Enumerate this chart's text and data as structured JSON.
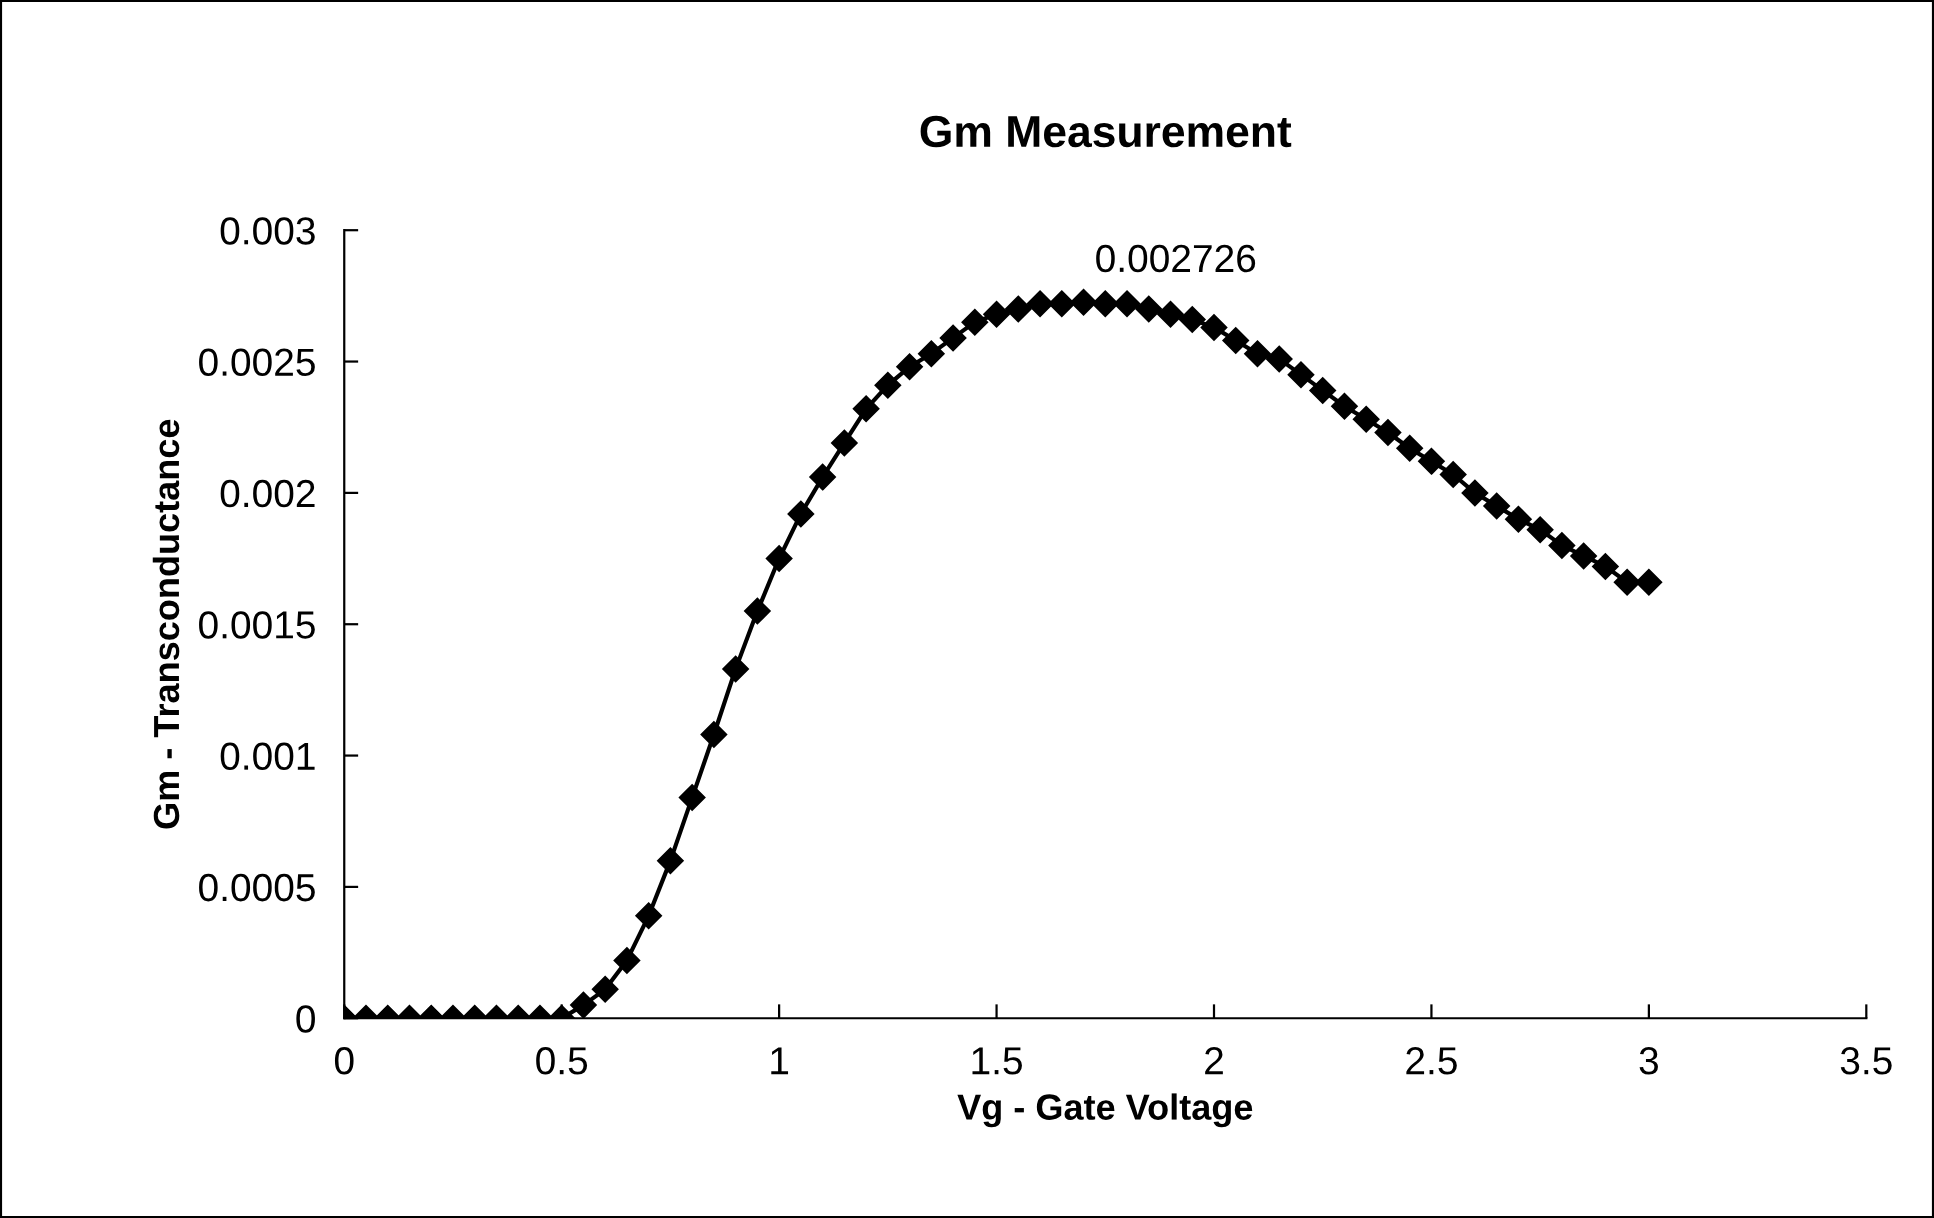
{
  "chart_data": {
    "type": "line",
    "title": "Gm Measurement",
    "xlabel": "Vg - Gate Voltage",
    "ylabel": "Gm - Transconductance",
    "x": [
      0,
      0.05,
      0.1,
      0.15,
      0.2,
      0.25,
      0.3,
      0.35,
      0.4,
      0.45,
      0.5,
      0.55,
      0.6,
      0.65,
      0.7,
      0.75,
      0.8,
      0.85,
      0.9,
      0.95,
      1.0,
      1.05,
      1.1,
      1.15,
      1.2,
      1.25,
      1.3,
      1.35,
      1.4,
      1.45,
      1.5,
      1.55,
      1.6,
      1.65,
      1.7,
      1.75,
      1.8,
      1.85,
      1.9,
      1.95,
      2.0,
      2.05,
      2.1,
      2.15,
      2.2,
      2.25,
      2.3,
      2.35,
      2.4,
      2.45,
      2.5,
      2.55,
      2.6,
      2.65,
      2.7,
      2.75,
      2.8,
      2.85,
      2.9,
      2.95,
      3.0
    ],
    "series": [
      {
        "color": "#000000",
        "values": [
          0,
          0,
          0,
          0,
          0,
          0,
          0,
          0,
          0,
          0,
          0,
          5e-05,
          0.00011,
          0.00022,
          0.00039,
          0.0006,
          0.00084,
          0.00108,
          0.00133,
          0.00155,
          0.00175,
          0.00192,
          0.00206,
          0.00219,
          0.00232,
          0.00241,
          0.00248,
          0.00253,
          0.00259,
          0.00265,
          0.00268,
          0.0027,
          0.00272,
          0.00272,
          0.002726,
          0.00272,
          0.00272,
          0.0027,
          0.00268,
          0.00266,
          0.00263,
          0.00258,
          0.00253,
          0.00251,
          0.00245,
          0.00239,
          0.00233,
          0.00228,
          0.00223,
          0.00217,
          0.00212,
          0.00207,
          0.002,
          0.00195,
          0.0019,
          0.00186,
          0.0018,
          0.00176,
          0.00172,
          0.00166,
          0.00166
        ]
      }
    ],
    "annotations": [
      {
        "text": "0.002726",
        "x": 1.7,
        "y": 0.002726
      }
    ],
    "xlim": [
      0,
      3.5
    ],
    "xticks": [
      0,
      0.5,
      1,
      1.5,
      2,
      2.5,
      3,
      3.5
    ],
    "ylim": [
      0,
      0.003
    ],
    "yticks": [
      0,
      0.0005,
      0.001,
      0.0015,
      0.002,
      0.0025,
      0.003
    ],
    "marker": "diamond",
    "line_style": "solid",
    "grid": false,
    "legend": false
  }
}
